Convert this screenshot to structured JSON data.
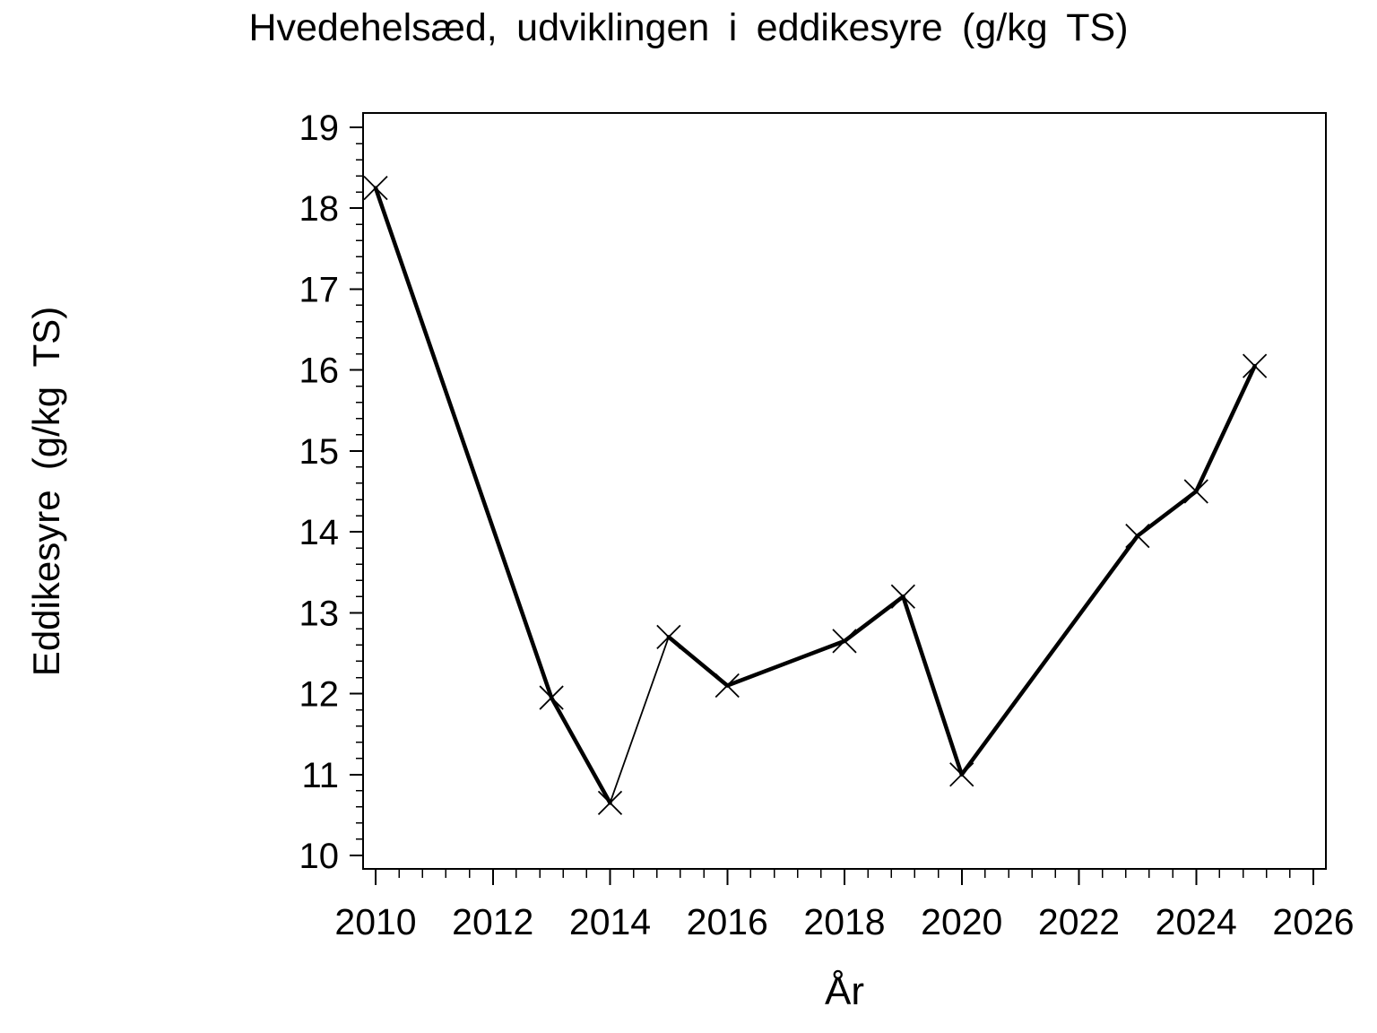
{
  "page": {
    "background_color": "#ffffff",
    "foreground_color": "#000000"
  },
  "chart_data": {
    "type": "line",
    "title": "Hvedehelsæd, udviklingen i eddikesyre (g/kg TS)",
    "xlabel": "År",
    "ylabel": "Eddikesyre (g/kg TS)",
    "x_ticks": [
      2010,
      2012,
      2014,
      2016,
      2018,
      2020,
      2022,
      2024,
      2026
    ],
    "y_ticks": [
      10,
      11,
      12,
      13,
      14,
      15,
      16,
      17,
      18,
      19
    ],
    "x_minor_ticks_per_interval": 4,
    "y_minor_ticks_per_interval": 4,
    "xlim": [
      2009.8,
      2026.2
    ],
    "ylim": [
      9.83,
      19.18
    ],
    "grid": false,
    "legend": false,
    "frame": true,
    "marker": "x",
    "line_color": "#000000",
    "series": [
      {
        "name": "Eddikesyre (g/kg TS)",
        "x": [
          2010,
          2013,
          2014,
          2015,
          2016,
          2018,
          2019,
          2020,
          2023,
          2024,
          2025
        ],
        "y": [
          18.25,
          11.95,
          10.65,
          12.7,
          12.1,
          12.65,
          13.2,
          11.0,
          13.95,
          14.5,
          16.05
        ]
      }
    ]
  }
}
